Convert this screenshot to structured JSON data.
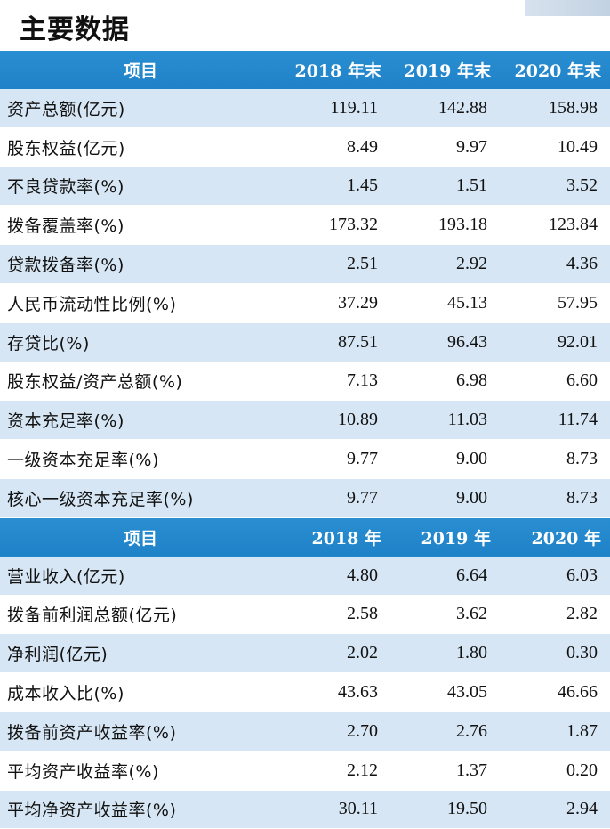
{
  "title": "主要数据",
  "section1": {
    "header": [
      "项目",
      "2018 年末",
      "2019 年末",
      "2020 年末"
    ],
    "rows": [
      {
        "label": "资产总额(亿元)",
        "values": [
          "119.11",
          "142.88",
          "158.98"
        ]
      },
      {
        "label": "股东权益(亿元)",
        "values": [
          "8.49",
          "9.97",
          "10.49"
        ]
      },
      {
        "label": "不良贷款率(%)",
        "values": [
          "1.45",
          "1.51",
          "3.52"
        ]
      },
      {
        "label": "拨备覆盖率(%)",
        "values": [
          "173.32",
          "193.18",
          "123.84"
        ]
      },
      {
        "label": "贷款拨备率(%)",
        "values": [
          "2.51",
          "2.92",
          "4.36"
        ]
      },
      {
        "label": "人民币流动性比例(%)",
        "values": [
          "37.29",
          "45.13",
          "57.95"
        ]
      },
      {
        "label": "存贷比(%)",
        "values": [
          "87.51",
          "96.43",
          "92.01"
        ]
      },
      {
        "label": "股东权益/资产总额(%)",
        "values": [
          "7.13",
          "6.98",
          "6.60"
        ]
      },
      {
        "label": "资本充足率(%)",
        "values": [
          "10.89",
          "11.03",
          "11.74"
        ]
      },
      {
        "label": "一级资本充足率(%)",
        "values": [
          "9.77",
          "9.00",
          "8.73"
        ]
      },
      {
        "label": "核心一级资本充足率(%)",
        "values": [
          "9.77",
          "9.00",
          "8.73"
        ]
      }
    ]
  },
  "section2": {
    "header": [
      "项目",
      "2018 年",
      "2019 年",
      "2020 年"
    ],
    "rows": [
      {
        "label": "营业收入(亿元)",
        "values": [
          "4.80",
          "6.64",
          "6.03"
        ]
      },
      {
        "label": "拨备前利润总额(亿元)",
        "values": [
          "2.58",
          "3.62",
          "2.82"
        ]
      },
      {
        "label": "净利润(亿元)",
        "values": [
          "2.02",
          "1.80",
          "0.30"
        ]
      },
      {
        "label": "成本收入比(%)",
        "values": [
          "43.63",
          "43.05",
          "46.66"
        ]
      },
      {
        "label": "拨备前资产收益率(%)",
        "values": [
          "2.70",
          "2.76",
          "1.87"
        ]
      },
      {
        "label": "平均资产收益率(%)",
        "values": [
          "2.12",
          "1.37",
          "0.20"
        ]
      },
      {
        "label": "平均净资产收益率(%)",
        "values": [
          "30.11",
          "19.50",
          "2.94"
        ]
      }
    ]
  },
  "colors": {
    "header_bg": "#1f82c8",
    "shade_row": "#d6e6f4",
    "plain_row": "#ffffff"
  }
}
